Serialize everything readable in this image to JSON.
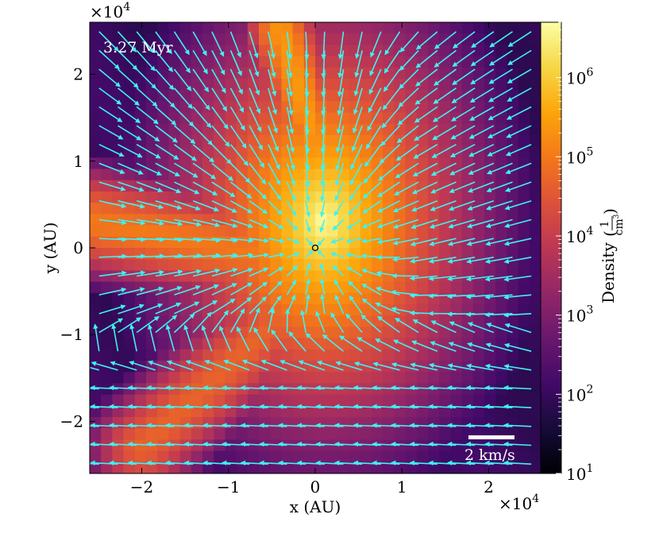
{
  "chart_data": {
    "type": "heatmap",
    "title": "",
    "time_label": "3.27 Myr",
    "xlabel": "x  (AU)",
    "ylabel": "y  (AU)",
    "x_multiplier": "×10",
    "x_multiplier_exp": "4",
    "y_multiplier": "×10",
    "y_multiplier_exp": "4",
    "xlim": [
      -2.6,
      2.6
    ],
    "ylim": [
      -2.6,
      2.6
    ],
    "x_ticks": [
      {
        "value": -2,
        "label": "−2"
      },
      {
        "value": -1,
        "label": "−1"
      },
      {
        "value": 0,
        "label": "0"
      },
      {
        "value": 1,
        "label": "1"
      },
      {
        "value": 2,
        "label": "2"
      }
    ],
    "y_ticks": [
      {
        "value": -2,
        "label": "−2"
      },
      {
        "value": -1,
        "label": "−1"
      },
      {
        "value": 0,
        "label": "0"
      },
      {
        "value": 1,
        "label": "1"
      },
      {
        "value": 2,
        "label": "2"
      }
    ],
    "colorbar": {
      "label_prefix": "Density",
      "unit_num": "1",
      "unit_den": "cm",
      "unit_den_exp": "3",
      "scale": "log",
      "range": [
        10,
        5000000
      ],
      "ticks": [
        {
          "value": 10,
          "base": "10",
          "exp": "1"
        },
        {
          "value": 100,
          "base": "10",
          "exp": "2"
        },
        {
          "value": 1000,
          "base": "10",
          "exp": "3"
        },
        {
          "value": 10000,
          "base": "10",
          "exp": "4"
        },
        {
          "value": 100000,
          "base": "10",
          "exp": "5"
        },
        {
          "value": 1000000,
          "base": "10",
          "exp": "6"
        }
      ],
      "colormap": "inferno"
    },
    "density_structure": {
      "peak_log_density": 6.7,
      "background_log_density": 2.0,
      "core_center": [
        0.1,
        0.3
      ],
      "filaments": [
        {
          "name": "northern arm",
          "from": [
            0.3,
            0.3
          ],
          "to": [
            -0.4,
            2.5
          ]
        },
        {
          "name": "western arm",
          "from": [
            0.0,
            -0.2
          ],
          "to": [
            -2.6,
            0.3
          ]
        },
        {
          "name": "southwestern arm",
          "from": [
            -0.4,
            -0.8
          ],
          "to": [
            -2.0,
            -2.3
          ]
        }
      ]
    },
    "velocity_field": {
      "color": "#3ff2f2",
      "scale_bar_label": "2 km/s",
      "scale_bar_value_kms": 2,
      "flow": "infall toward the central core along the filaments"
    },
    "center_marker": {
      "x": 0,
      "y": 0
    }
  }
}
